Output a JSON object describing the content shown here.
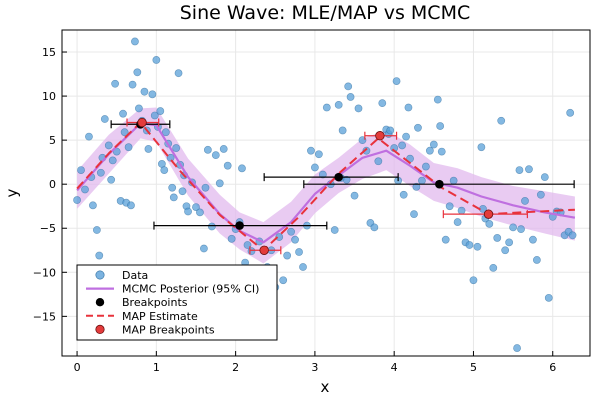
{
  "chart_data": {
    "type": "scatter",
    "title": "Sine Wave: MLE/MAP vs MCMC",
    "xlabel": "x",
    "ylabel": "y",
    "xlim": [
      -0.19,
      6.47
    ],
    "ylim": [
      -19.5,
      17.5
    ],
    "xticks": [
      0,
      1,
      2,
      3,
      4,
      5,
      6
    ],
    "yticks": [
      -15,
      -10,
      -5,
      0,
      5,
      10,
      15
    ],
    "grid": true,
    "legend_position": "bottom-left",
    "colors": {
      "data": "#5aa0d8",
      "data_edge": "#2f6d9e",
      "posterior": "#bf6fe0",
      "band": "#e2b9ee",
      "breakpoints": "#000000",
      "map": "#e8323c",
      "map_points": "#e33b3b"
    },
    "legend": [
      {
        "label": "Data",
        "kind": "marker-blue"
      },
      {
        "label": "MCMC Posterior (95% CI)",
        "kind": "line-purple"
      },
      {
        "label": "Breakpoints",
        "kind": "marker-black"
      },
      {
        "label": "MAP Estimate",
        "kind": "line-red-dashed"
      },
      {
        "label": "MAP Breakpoints",
        "kind": "marker-red"
      }
    ],
    "series": [
      {
        "name": "Data",
        "kind": "scatter",
        "points": [
          [
            0.0,
            -1.8
          ],
          [
            0.05,
            1.6
          ],
          [
            0.1,
            -0.6
          ],
          [
            0.15,
            5.4
          ],
          [
            0.18,
            0.8
          ],
          [
            0.2,
            -2.4
          ],
          [
            0.25,
            -5.2
          ],
          [
            0.28,
            -8.1
          ],
          [
            0.3,
            1.3
          ],
          [
            0.32,
            3.0
          ],
          [
            0.35,
            7.4
          ],
          [
            0.4,
            4.4
          ],
          [
            0.43,
            0.5
          ],
          [
            0.45,
            2.7
          ],
          [
            0.48,
            11.4
          ],
          [
            0.5,
            3.7
          ],
          [
            0.55,
            -1.9
          ],
          [
            0.58,
            8.0
          ],
          [
            0.6,
            5.9
          ],
          [
            0.62,
            -2.1
          ],
          [
            0.65,
            4.2
          ],
          [
            0.68,
            -2.4
          ],
          [
            0.7,
            11.3
          ],
          [
            0.73,
            16.2
          ],
          [
            0.76,
            12.7
          ],
          [
            0.78,
            8.6
          ],
          [
            0.82,
            7.2
          ],
          [
            0.85,
            10.5
          ],
          [
            0.88,
            6.1
          ],
          [
            0.9,
            4.0
          ],
          [
            0.95,
            10.2
          ],
          [
            0.98,
            7.8
          ],
          [
            1.0,
            14.1
          ],
          [
            1.02,
            6.5
          ],
          [
            1.05,
            8.3
          ],
          [
            1.07,
            2.3
          ],
          [
            1.1,
            1.6
          ],
          [
            1.12,
            5.9
          ],
          [
            1.15,
            4.6
          ],
          [
            1.18,
            3.0
          ],
          [
            1.2,
            -0.4
          ],
          [
            1.22,
            -1.5
          ],
          [
            1.25,
            4.1
          ],
          [
            1.28,
            12.6
          ],
          [
            1.3,
            2.2
          ],
          [
            1.33,
            -0.8
          ],
          [
            1.35,
            1.0
          ],
          [
            1.38,
            -2.5
          ],
          [
            1.4,
            -3.1
          ],
          [
            1.45,
            0.2
          ],
          [
            1.5,
            -2.6
          ],
          [
            1.55,
            -3.2
          ],
          [
            1.6,
            -7.3
          ],
          [
            1.62,
            -0.4
          ],
          [
            1.65,
            3.9
          ],
          [
            1.7,
            -4.8
          ],
          [
            1.75,
            3.3
          ],
          [
            1.8,
            0.1
          ],
          [
            1.85,
            4.0
          ],
          [
            1.9,
            2.1
          ],
          [
            1.95,
            -6.2
          ],
          [
            2.0,
            -5.1
          ],
          [
            2.05,
            -4.3
          ],
          [
            2.08,
            1.8
          ],
          [
            2.12,
            -8.9
          ],
          [
            2.15,
            -6.9
          ],
          [
            2.2,
            -7.6
          ],
          [
            2.25,
            -10.0
          ],
          [
            2.3,
            -6.5
          ],
          [
            2.33,
            -12.7
          ],
          [
            2.37,
            -11.0
          ],
          [
            2.4,
            -9.4
          ],
          [
            2.45,
            -7.5
          ],
          [
            2.5,
            -11.7
          ],
          [
            2.55,
            -6.0
          ],
          [
            2.6,
            -10.9
          ],
          [
            2.65,
            -8.1
          ],
          [
            2.7,
            -5.4
          ],
          [
            2.75,
            -6.3
          ],
          [
            2.8,
            -7.7
          ],
          [
            2.85,
            -9.4
          ],
          [
            2.9,
            -4.7
          ],
          [
            2.95,
            3.8
          ],
          [
            3.0,
            1.9
          ],
          [
            3.05,
            3.4
          ],
          [
            3.1,
            1.1
          ],
          [
            3.15,
            8.7
          ],
          [
            3.2,
            0.0
          ],
          [
            3.25,
            -5.2
          ],
          [
            3.3,
            9.0
          ],
          [
            3.33,
            0.7
          ],
          [
            3.35,
            6.1
          ],
          [
            3.4,
            0.5
          ],
          [
            3.42,
            11.1
          ],
          [
            3.45,
            9.9
          ],
          [
            3.5,
            -1.3
          ],
          [
            3.55,
            8.6
          ],
          [
            3.6,
            5.0
          ],
          [
            3.65,
            3.8
          ],
          [
            3.7,
            -4.4
          ],
          [
            3.75,
            -4.9
          ],
          [
            3.8,
            2.6
          ],
          [
            3.85,
            9.2
          ],
          [
            3.9,
            6.2
          ],
          [
            3.93,
            5.7
          ],
          [
            3.95,
            6.1
          ],
          [
            4.0,
            4.1
          ],
          [
            4.03,
            11.7
          ],
          [
            4.05,
            0.4
          ],
          [
            4.1,
            4.4
          ],
          [
            4.12,
            -1.2
          ],
          [
            4.15,
            5.4
          ],
          [
            4.18,
            8.7
          ],
          [
            4.2,
            2.9
          ],
          [
            4.25,
            -3.4
          ],
          [
            4.28,
            -0.3
          ],
          [
            4.3,
            6.4
          ],
          [
            4.35,
            0.4
          ],
          [
            4.4,
            2.0
          ],
          [
            4.45,
            3.8
          ],
          [
            4.5,
            4.5
          ],
          [
            4.55,
            9.6
          ],
          [
            4.58,
            6.6
          ],
          [
            4.6,
            3.7
          ],
          [
            4.65,
            -6.3
          ],
          [
            4.7,
            -2.5
          ],
          [
            4.75,
            0.4
          ],
          [
            4.8,
            -4.3
          ],
          [
            4.85,
            -3.0
          ],
          [
            4.9,
            -6.6
          ],
          [
            4.95,
            -6.9
          ],
          [
            5.0,
            -10.9
          ],
          [
            5.05,
            -7.1
          ],
          [
            5.1,
            4.2
          ],
          [
            5.12,
            -2.8
          ],
          [
            5.15,
            -3.9
          ],
          [
            5.2,
            -4.5
          ],
          [
            5.25,
            -9.5
          ],
          [
            5.3,
            -6.1
          ],
          [
            5.35,
            7.2
          ],
          [
            5.4,
            -7.5
          ],
          [
            5.45,
            -6.6
          ],
          [
            5.5,
            -4.9
          ],
          [
            5.55,
            -18.6
          ],
          [
            5.58,
            1.6
          ],
          [
            5.6,
            -5.1
          ],
          [
            5.65,
            -1.9
          ],
          [
            5.7,
            1.7
          ],
          [
            5.75,
            -6.3
          ],
          [
            5.8,
            -8.6
          ],
          [
            5.85,
            -1.2
          ],
          [
            5.9,
            0.8
          ],
          [
            5.95,
            -12.9
          ],
          [
            6.0,
            -3.7
          ],
          [
            6.05,
            -3.1
          ],
          [
            6.1,
            -3.2
          ],
          [
            6.15,
            -5.8
          ],
          [
            6.2,
            -5.4
          ],
          [
            6.25,
            -5.8
          ],
          [
            6.22,
            8.1
          ]
        ]
      },
      {
        "name": "MCMC Posterior (95% CI)",
        "kind": "line",
        "x": [
          0.0,
          0.4,
          0.8,
          1.0,
          1.4,
          1.8,
          2.05,
          2.35,
          2.7,
          3.0,
          3.3,
          3.6,
          3.9,
          4.2,
          4.5,
          4.8,
          5.1,
          5.5,
          5.9,
          6.28
        ],
        "y": [
          -0.7,
          3.4,
          6.9,
          6.7,
          0.8,
          -3.4,
          -5.3,
          -6.6,
          -4.3,
          -1.1,
          1.0,
          3.0,
          3.8,
          2.1,
          0.2,
          -0.4,
          -1.4,
          -2.4,
          -3.2,
          -3.8
        ],
        "lower": [
          -2.8,
          1.2,
          5.2,
          4.8,
          -1.3,
          -5.6,
          -7.4,
          -9.0,
          -6.6,
          -3.3,
          -1.0,
          0.6,
          1.6,
          -0.2,
          -1.9,
          -2.7,
          -3.7,
          -4.7,
          -5.6,
          -6.4
        ],
        "upper": [
          1.5,
          5.6,
          8.6,
          8.7,
          2.9,
          -1.2,
          -3.2,
          -4.3,
          -2.0,
          1.1,
          3.0,
          5.2,
          6.1,
          4.5,
          2.4,
          1.8,
          0.8,
          -0.2,
          -0.8,
          -1.4
        ]
      },
      {
        "name": "Breakpoints",
        "kind": "points",
        "points": [
          [
            0.8,
            6.8
          ],
          [
            2.05,
            -4.7
          ],
          [
            3.3,
            0.8
          ],
          [
            4.57,
            0.0
          ]
        ],
        "xerr": [
          [
            0.43,
            1.17
          ],
          [
            0.97,
            3.15
          ],
          [
            2.36,
            4.05
          ],
          [
            2.86,
            6.27
          ]
        ]
      },
      {
        "name": "MAP Estimate",
        "kind": "line",
        "x": [
          0.0,
          0.4,
          0.8,
          1.3,
          1.8,
          2.35,
          2.8,
          3.3,
          3.8,
          4.2,
          4.6,
          5.19,
          5.6,
          6.28
        ],
        "y": [
          -0.5,
          3.5,
          7.0,
          1.5,
          -3.5,
          -7.5,
          -3.7,
          1.2,
          5.2,
          2.4,
          -0.4,
          -3.4,
          -3.2,
          -2.9
        ]
      },
      {
        "name": "MAP Breakpoints",
        "kind": "points",
        "points": [
          [
            0.82,
            7.0
          ],
          [
            2.36,
            -7.5
          ],
          [
            3.82,
            5.5
          ],
          [
            5.19,
            -3.4
          ]
        ],
        "xerr": [
          [
            0.63,
            1.03
          ],
          [
            2.18,
            2.57
          ],
          [
            3.63,
            4.03
          ],
          [
            4.62,
            5.68
          ]
        ]
      }
    ]
  }
}
